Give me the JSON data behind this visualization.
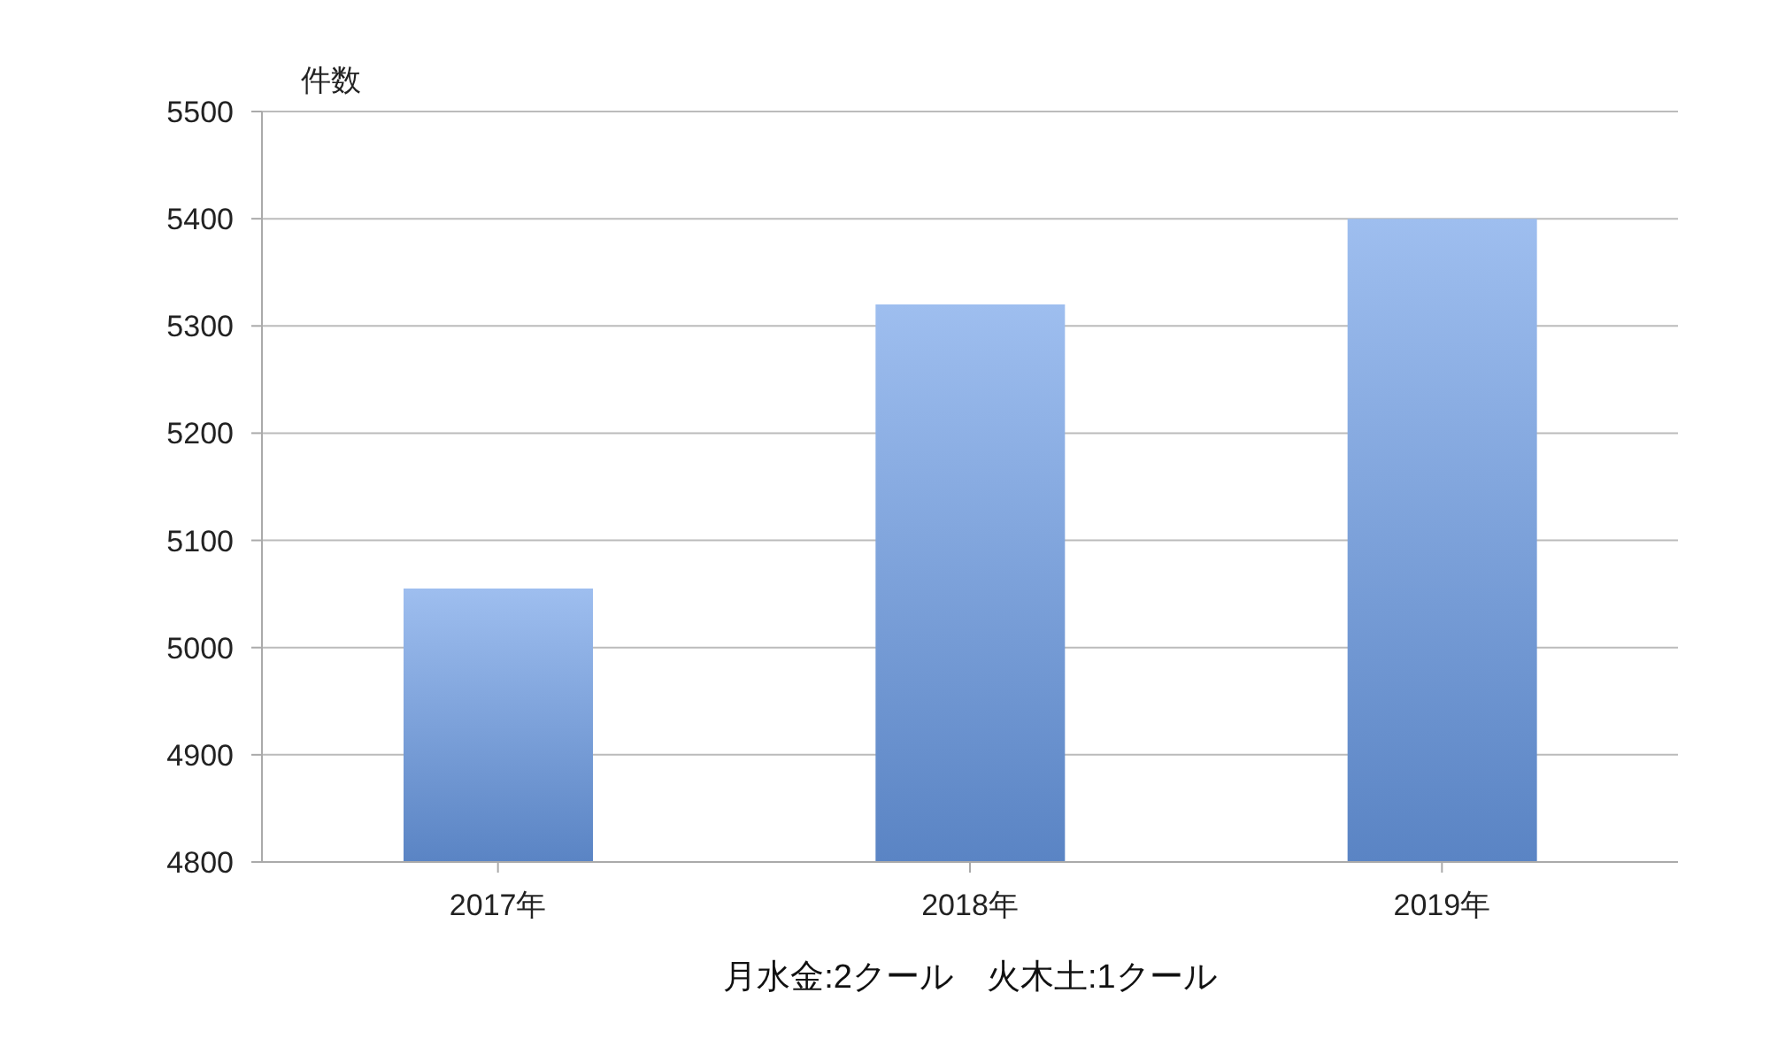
{
  "chart_data": {
    "type": "bar",
    "ylabel": "件数",
    "xlabel": "月水金:2クール　火木土:1クール",
    "categories": [
      "2017年",
      "2018年",
      "2019年"
    ],
    "values": [
      5055,
      5320,
      5400
    ],
    "color": "#6a9be6",
    "ylim": [
      4800,
      5500
    ],
    "yticks": [
      4800,
      4900,
      5000,
      5100,
      5200,
      5300,
      5400,
      5500
    ],
    "grid": "y"
  }
}
